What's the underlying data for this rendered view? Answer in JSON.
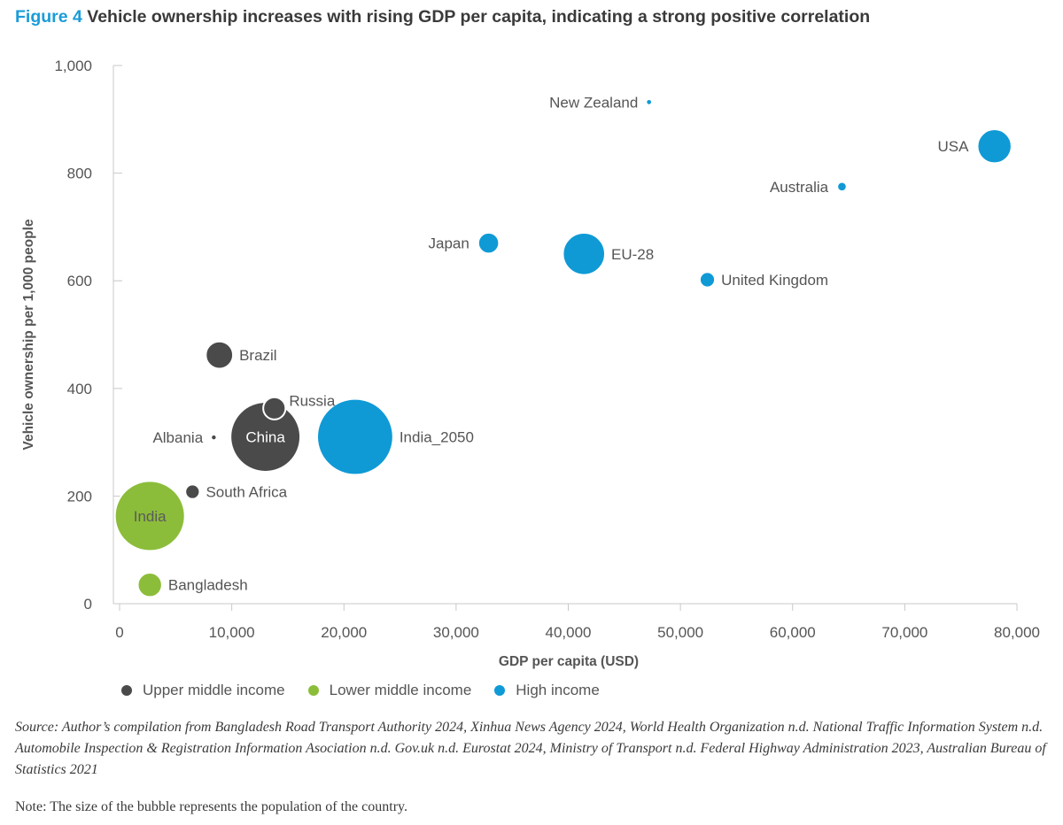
{
  "figure": {
    "label": "Figure 4",
    "title": "Vehicle ownership increases with rising GDP per capita, indicating a strong positive correlation"
  },
  "chart_data": {
    "type": "scatter",
    "xlabel": "GDP per capita (USD)",
    "ylabel": "Vehicle ownership per 1,000 people",
    "xlim": [
      0,
      80000
    ],
    "ylim": [
      0,
      1000
    ],
    "x_ticks": [
      0,
      10000,
      20000,
      30000,
      40000,
      50000,
      60000,
      70000,
      80000
    ],
    "x_tick_labels": [
      "0",
      "10,000",
      "20,000",
      "30,000",
      "40,000",
      "50,000",
      "60,000",
      "70,000",
      "80,000"
    ],
    "y_ticks": [
      0,
      200,
      400,
      600,
      800,
      1000
    ],
    "y_tick_labels": [
      "0",
      "200",
      "400",
      "600",
      "800",
      "1,000"
    ],
    "grid": false,
    "legend_position": "bottom",
    "size_encoding": "population",
    "groups": [
      {
        "name": "Upper middle income",
        "color": "#4a4a4a"
      },
      {
        "name": "Lower middle income",
        "color": "#8cbd3a"
      },
      {
        "name": "High income",
        "color": "#0f9ad6"
      }
    ],
    "points": [
      {
        "label": "New Zealand",
        "x": 47200,
        "y": 932,
        "population": 5,
        "group": "High income",
        "label_pos": "left"
      },
      {
        "label": "USA",
        "x": 78000,
        "y": 850,
        "population": 335,
        "group": "High income",
        "label_pos": "left"
      },
      {
        "label": "Australia",
        "x": 64400,
        "y": 775,
        "population": 26,
        "group": "High income",
        "label_pos": "left"
      },
      {
        "label": "Japan",
        "x": 32900,
        "y": 670,
        "population": 125,
        "group": "High income",
        "label_pos": "left"
      },
      {
        "label": "EU-28",
        "x": 41400,
        "y": 650,
        "population": 513,
        "group": "High income",
        "label_pos": "right"
      },
      {
        "label": "United Kingdom",
        "x": 52400,
        "y": 602,
        "population": 67,
        "group": "High income",
        "label_pos": "right"
      },
      {
        "label": "Brazil",
        "x": 8900,
        "y": 462,
        "population": 215,
        "group": "Upper middle income",
        "label_pos": "right"
      },
      {
        "label": "Russia",
        "x": 13800,
        "y": 363,
        "population": 144,
        "group": "Upper middle income",
        "label_pos": "topright"
      },
      {
        "label": "Albania",
        "x": 8400,
        "y": 309,
        "population": 3,
        "group": "Upper middle income",
        "label_pos": "left"
      },
      {
        "label": "China",
        "x": 13000,
        "y": 310,
        "population": 1412,
        "group": "Upper middle income",
        "label_pos": "center"
      },
      {
        "label": "India_2050",
        "x": 21000,
        "y": 310,
        "population": 1670,
        "group": "High income",
        "label_pos": "right"
      },
      {
        "label": "South Africa",
        "x": 6500,
        "y": 208,
        "population": 60,
        "group": "Upper middle income",
        "label_pos": "right"
      },
      {
        "label": "India",
        "x": 2700,
        "y": 163,
        "population": 1417,
        "group": "Lower middle income",
        "label_pos": "center"
      },
      {
        "label": "Bangladesh",
        "x": 2700,
        "y": 35,
        "population": 170,
        "group": "Lower middle income",
        "label_pos": "right"
      }
    ]
  },
  "source_text": "Source: Author’s compilation from Bangladesh Road Transport Authority 2024, Xinhua News Agency 2024, World Health Organization n.d. National Traffic Information System n.d. Automobile Inspection & Registration Information Asociation n.d. Gov.uk n.d. Eurostat 2024, Ministry of Transport n.d. Federal Highway Administration 2023, Australian Bureau of Statistics 2021",
  "note_text": "Note: The size of the bubble represents the population of the country."
}
